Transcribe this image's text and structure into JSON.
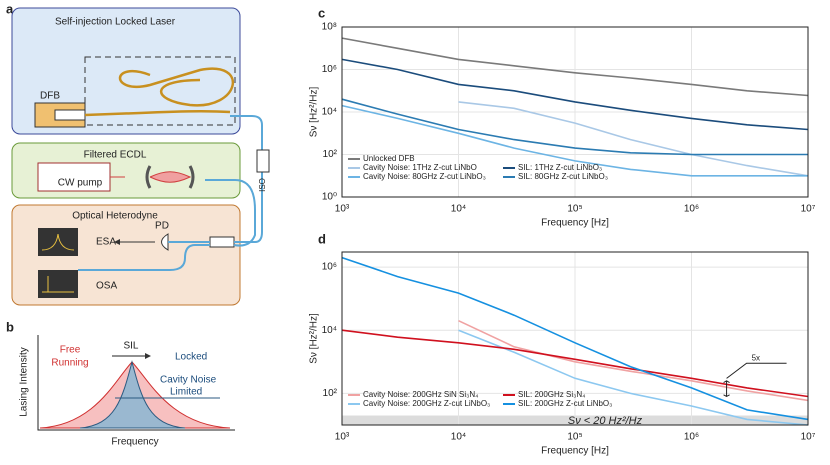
{
  "panels": {
    "a": "a",
    "b": "b"
  },
  "diagram": {
    "sil_title": "Self-injection Locked Laser",
    "dfb": "DFB",
    "ecdl_title": "Filtered ECDL",
    "cw_pump": "CW pump",
    "iso": "ISO",
    "het_title": "Optical Heterodyne",
    "pd": "PD",
    "esa": "ESA",
    "osa": "OSA"
  },
  "lorentz": {
    "y_label": "Lasing Intensity",
    "x_label": "Frequency",
    "free": [
      "Free",
      "Running"
    ],
    "sil": "SIL",
    "locked": "Locked",
    "cavity": [
      "Cavity Noise",
      "Limited"
    ]
  },
  "chart_data": [
    {
      "type": "line",
      "panel": "c",
      "x_label": "Frequency [Hz]",
      "y_label": "Sν [Hz²/Hz]",
      "log_x": true,
      "log_y": true,
      "grid": true,
      "xlim": [
        1000,
        10000000
      ],
      "ylim": [
        1,
        100000000
      ],
      "xticks": [
        {
          "value": 1000,
          "label": "10³"
        },
        {
          "value": 10000,
          "label": "10⁴"
        },
        {
          "value": 100000,
          "label": "10⁵"
        },
        {
          "value": 1000000,
          "label": "10⁶"
        },
        {
          "value": 10000000,
          "label": "10⁷"
        }
      ],
      "yticks": [
        {
          "value": 1,
          "label": "10⁰"
        },
        {
          "value": 100,
          "label": "10²"
        },
        {
          "value": 10000,
          "label": "10⁴"
        },
        {
          "value": 1000000,
          "label": "10⁶"
        },
        {
          "value": 100000000,
          "label": "10⁸"
        }
      ],
      "x": [
        1000,
        3000,
        10000,
        30000,
        100000,
        300000,
        1000000,
        3000000,
        10000000
      ],
      "series": [
        {
          "name": "Unlocked DFB",
          "color": "#7a7a7a",
          "values": [
            30000000,
            10000000,
            3000000,
            1500000,
            700000,
            400000,
            200000,
            100000,
            60000
          ]
        },
        {
          "name": "Cavity Noise: 1THz Z-cut LiNbO",
          "color": "#a9c8e6",
          "values": [
            null,
            null,
            30000,
            15000,
            3000,
            500,
            100,
            30,
            10
          ]
        },
        {
          "name": "Cavity Noise: 80GHz Z-cut LiNbO₃",
          "color": "#6cb4e4",
          "values": [
            20000,
            5000,
            1000,
            200,
            50,
            20,
            10,
            10,
            10
          ]
        },
        {
          "name": "SIL: 1THz Z-cut LiNbO₃",
          "color": "#1b4c7c",
          "values": [
            3000000,
            1000000,
            200000,
            100000,
            30000,
            12000,
            5000,
            2500,
            1500
          ]
        },
        {
          "name": "SIL: 80GHz Z-cut LiNbO₃",
          "color": "#2b7bb2",
          "values": [
            40000,
            8000,
            1500,
            500,
            200,
            120,
            100,
            100,
            100
          ]
        }
      ]
    },
    {
      "type": "line",
      "panel": "d",
      "x_label": "Frequency [Hz]",
      "y_label": "Sν [Hz²/Hz]",
      "log_x": true,
      "log_y": true,
      "grid": true,
      "xlim": [
        1000,
        10000000
      ],
      "ylim": [
        10,
        3000000
      ],
      "xticks": [
        {
          "value": 1000,
          "label": "10³"
        },
        {
          "value": 10000,
          "label": "10⁴"
        },
        {
          "value": 100000,
          "label": "10⁵"
        },
        {
          "value": 1000000,
          "label": "10⁶"
        },
        {
          "value": 10000000,
          "label": "10⁷"
        }
      ],
      "yticks": [
        {
          "value": 100,
          "label": "10²"
        },
        {
          "value": 10000,
          "label": "10⁴"
        },
        {
          "value": 1000000,
          "label": "10⁶"
        }
      ],
      "x": [
        1000,
        3000,
        10000,
        30000,
        100000,
        300000,
        1000000,
        3000000,
        10000000
      ],
      "shade_below": 20,
      "shade_label": "Sν < 20 Hz²/Hz",
      "annotation": "5x",
      "series": [
        {
          "name": "Cavity Noise: 200GHz SiN Si₃N₄",
          "color": "#f0a2a2",
          "values": [
            null,
            null,
            20000,
            3000,
            1000,
            500,
            250,
            120,
            60
          ]
        },
        {
          "name": "Cavity Noise: 200GHz  Z-cut LiNbO₃",
          "color": "#8cc8f0",
          "values": [
            null,
            null,
            10000,
            2000,
            300,
            100,
            40,
            15,
            10
          ]
        },
        {
          "name": "SIL: 200GHz Si₃N₄",
          "color": "#d0101e",
          "values": [
            10000,
            6000,
            4000,
            2500,
            1200,
            600,
            300,
            150,
            80
          ]
        },
        {
          "name": "SIL: 200GHz  Z-cut LiNbO₃",
          "color": "#1590e0",
          "values": [
            2000000,
            500000,
            150000,
            30000,
            4000,
            700,
            150,
            30,
            15
          ]
        }
      ]
    }
  ]
}
